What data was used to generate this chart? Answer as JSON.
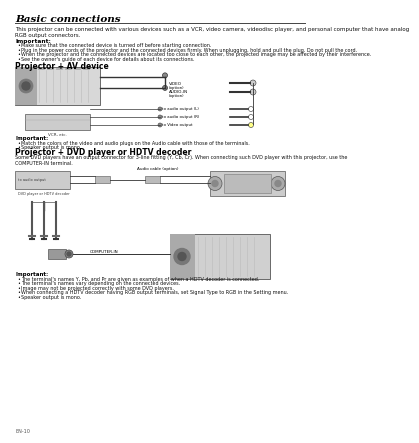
{
  "title": "Basic connections",
  "page_num": "EN-10",
  "bg_color": "#ffffff",
  "intro_text": "This projector can be connected with various devices such as a VCR, video camera, videodisc player, and personal computer that have analog\nRGB output connectors.",
  "important_label": "Important:",
  "bullets_top": [
    "Make sure that the connected device is turned off before starting connection.",
    "Plug in the power cords of the projector and the connected devices firmly. When unplugging, hold and pull the plug. Do not pull the cord.",
    "When the projector and the connected devices are located too close to each other, the projected image may be affected by their interference.",
    "See the owner's guide of each device for details about its connections."
  ],
  "section1_title": "Projector + AV device",
  "important2_label": "Important:",
  "bullets_mid": [
    "Match the colors of the video and audio plugs on the Audio cable with those of the terminals.",
    "Speaker output is mono."
  ],
  "section2_title": "Projector + DVD player or HDTV decoder",
  "section2_desc": "Some DVD players have an output connector for 3-line fitting (Y, Cb, Cr). When connecting such DVD player with this projector, use the\nCOMPUTER-IN terminal.",
  "important3_label": "Important:",
  "bullets_bottom": [
    "The terminal's names Y, Pb, and Pr are given as examples of when a HDTV decoder is connected.",
    "The terminal's names vary depending on the connected devices.",
    "Image may not be projected correctly with some DVD players.",
    "When connecting a HDTV decoder having RGB output terminals, set Signal Type to RGB in the Setting menu.",
    "Speaker output is mono."
  ]
}
